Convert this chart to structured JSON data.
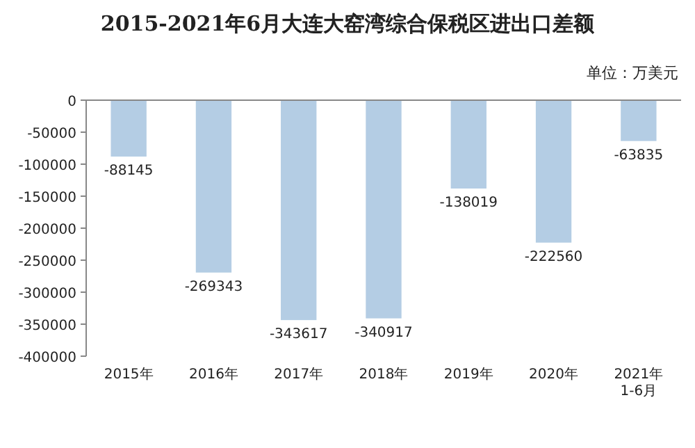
{
  "chart_data": {
    "type": "bar",
    "title": "2015-2021年6月大连大窑湾综合保税区进出口差额",
    "subtitle": "单位：万美元",
    "categories": [
      "2015年",
      "2016年",
      "2017年",
      "2018年",
      "2019年",
      "2020年",
      "2021年1-6月"
    ],
    "values": [
      -88145,
      -269343,
      -343617,
      -340917,
      -138019,
      -222560,
      -63835
    ],
    "color": "#b4cde4",
    "ylim": [
      -400000,
      0
    ],
    "yticks": [
      -400000,
      -350000,
      -300000,
      -250000,
      -200000,
      -150000,
      -100000,
      -50000,
      0
    ],
    "data_labels": true
  }
}
